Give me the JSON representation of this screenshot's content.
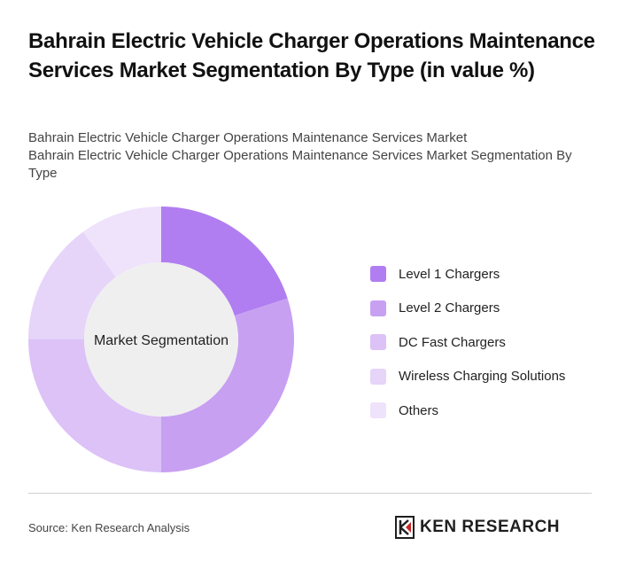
{
  "title": "Bahrain Electric Vehicle Charger Operations Maintenance Services Market Segmentation By Type (in value %)",
  "subtitle_lines": [
    "Bahrain Electric Vehicle Charger Operations Maintenance Services Market",
    "Bahrain Electric Vehicle Charger Operations Maintenance Services Market Segmentation By Type"
  ],
  "chart_data": {
    "type": "pie",
    "variant": "donut",
    "center_label": "Market Segmentation",
    "categories": [
      "Level 1 Chargers",
      "Level 2 Chargers",
      "DC Fast Chargers",
      "Wireless Charging Solutions",
      "Others"
    ],
    "values": [
      20,
      30,
      25,
      15,
      10
    ],
    "colors": [
      "#b07ef0",
      "#c7a0f2",
      "#dcc2f7",
      "#e6d4f9",
      "#efe2fb"
    ],
    "legend_position": "right"
  },
  "footer": {
    "source": "Source: Ken Research Analysis",
    "brand": "KEN RESEARCH",
    "brand_icon": "ken-research-logo-icon"
  }
}
